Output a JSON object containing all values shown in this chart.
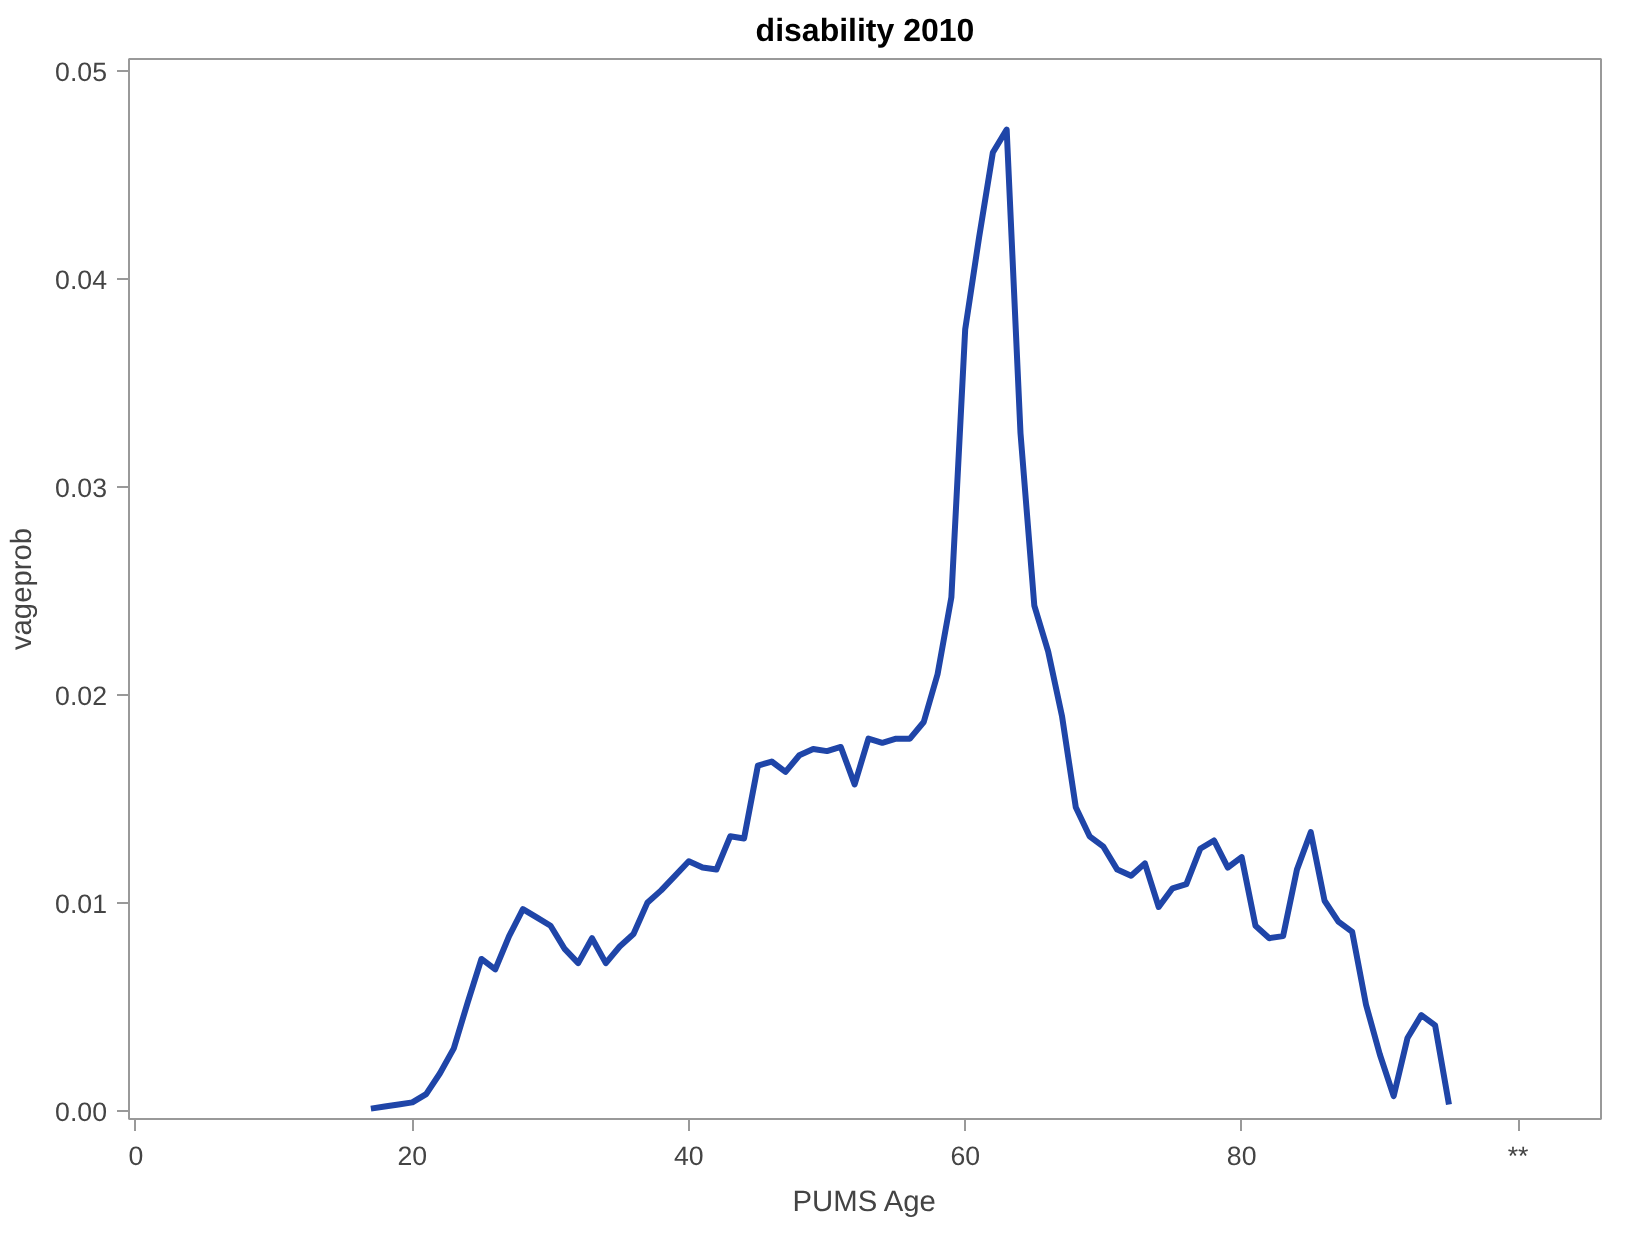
{
  "chart_data": {
    "type": "line",
    "title": "disability 2010",
    "xlabel": "PUMS Age",
    "ylabel": "vageprob",
    "x": [
      17,
      18,
      19,
      20,
      21,
      22,
      23,
      24,
      25,
      26,
      27,
      28,
      29,
      30,
      31,
      32,
      33,
      34,
      35,
      36,
      37,
      38,
      39,
      40,
      41,
      42,
      43,
      44,
      45,
      46,
      47,
      48,
      49,
      50,
      51,
      52,
      53,
      54,
      55,
      56,
      57,
      58,
      59,
      60,
      61,
      62,
      63,
      64,
      65,
      66,
      67,
      68,
      69,
      70,
      71,
      72,
      73,
      74,
      75,
      76,
      77,
      78,
      79,
      80,
      81,
      82,
      83,
      84,
      85,
      86,
      87,
      88,
      89,
      90,
      91,
      92,
      93,
      94,
      95
    ],
    "series": [
      {
        "color": "#1f45a8",
        "values": [
          0.0001,
          0.0002,
          0.0003,
          0.0004,
          0.0008,
          0.0018,
          0.003,
          0.0052,
          0.0073,
          0.0068,
          0.0084,
          0.0097,
          0.0093,
          0.0089,
          0.0078,
          0.0071,
          0.0083,
          0.0071,
          0.0079,
          0.0085,
          0.01,
          0.0106,
          0.0113,
          0.012,
          0.0117,
          0.0116,
          0.0132,
          0.0131,
          0.0166,
          0.0168,
          0.0163,
          0.0171,
          0.0174,
          0.0173,
          0.0175,
          0.0157,
          0.0179,
          0.0177,
          0.0179,
          0.0179,
          0.0187,
          0.021,
          0.0247,
          0.0376,
          0.042,
          0.0461,
          0.0472,
          0.0326,
          0.0243,
          0.0221,
          0.019,
          0.0146,
          0.0132,
          0.0127,
          0.0116,
          0.0113,
          0.0119,
          0.0098,
          0.0107,
          0.0109,
          0.0126,
          0.013,
          0.0117,
          0.0122,
          0.0089,
          0.0083,
          0.0084,
          0.0116,
          0.0134,
          0.0101,
          0.0091,
          0.0086,
          0.0051,
          0.0027,
          0.0007,
          0.0035,
          0.0046,
          0.0041,
          0.0003
        ]
      }
    ],
    "xlim": [
      -0.5,
      106
    ],
    "ylim": [
      -0.0004,
      0.0506
    ],
    "xticks": [
      0,
      20,
      40,
      60,
      80,
      {
        "value": 100,
        "label": "**"
      }
    ],
    "yticks": [
      {
        "value": 0,
        "label": "0.00"
      },
      {
        "value": 0.01,
        "label": "0.01"
      },
      {
        "value": 0.02,
        "label": "0.02"
      },
      {
        "value": 0.03,
        "label": "0.03"
      },
      {
        "value": 0.04,
        "label": "0.04"
      },
      {
        "value": 0.05,
        "label": "0.05"
      }
    ],
    "grid": false,
    "line_style": "solid",
    "marker": "none"
  }
}
